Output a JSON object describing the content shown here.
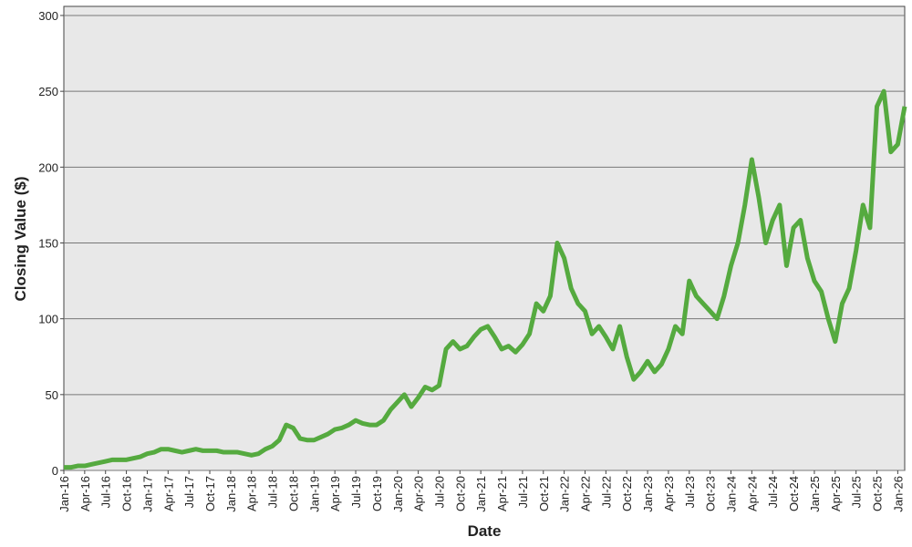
{
  "chart_data": {
    "type": "line",
    "x_label": "Date",
    "y_label": "Closing Value ($)",
    "categories": [
      "Jan-16",
      null,
      null,
      "Apr-16",
      null,
      null,
      "Jul-16",
      null,
      null,
      "Oct-16",
      null,
      null,
      "Jan-17",
      null,
      null,
      "Apr-17",
      null,
      null,
      "Jul-17",
      null,
      null,
      "Oct-17",
      null,
      null,
      "Jan-18",
      null,
      null,
      "Apr-18",
      null,
      null,
      "Jul-18",
      null,
      null,
      "Oct-18",
      null,
      null,
      "Jan-19",
      null,
      null,
      "Apr-19",
      null,
      null,
      "Jul-19",
      null,
      null,
      "Oct-19",
      null,
      null,
      "Jan-20",
      null,
      null,
      "Apr-20",
      null,
      null,
      "Jul-20",
      null,
      null,
      "Oct-20",
      null,
      null,
      "Jan-21",
      null,
      null,
      "Apr-21",
      null,
      null,
      "Jul-21",
      null,
      null,
      "Oct-21",
      null,
      null,
      "Jan-22",
      null,
      null,
      "Apr-22",
      null,
      null,
      "Jul-22",
      null,
      null,
      "Oct-22",
      null,
      null,
      "Jan-23",
      null,
      null,
      "Apr-23",
      null,
      null,
      "Jul-23",
      null,
      null,
      "Oct-23",
      null,
      null,
      "Jan-24",
      null,
      null,
      "Apr-24",
      null,
      null,
      "Jul-24",
      null,
      null,
      "Oct-24",
      null,
      null,
      "Jan-25",
      null,
      null,
      "Apr-25",
      null,
      null,
      "Jul-25",
      null,
      null,
      "Oct-25",
      null,
      null,
      "Jan-26",
      null
    ],
    "series": [
      {
        "color": "#55aa3f",
        "values": [
          2,
          2,
          3,
          3,
          4,
          5,
          6,
          7,
          7,
          7,
          8,
          9,
          11,
          12,
          14,
          14,
          13,
          12,
          13,
          14,
          13,
          13,
          13,
          12,
          12,
          12,
          11,
          10,
          11,
          14,
          16,
          20,
          30,
          28,
          21,
          20,
          20,
          22,
          24,
          27,
          28,
          30,
          33,
          31,
          30,
          30,
          33,
          40,
          45,
          50,
          42,
          48,
          55,
          53,
          56,
          80,
          85,
          80,
          82,
          88,
          93,
          95,
          88,
          80,
          82,
          78,
          83,
          90,
          110,
          105,
          115,
          150,
          140,
          120,
          110,
          105,
          90,
          95,
          88,
          80,
          95,
          75,
          60,
          65,
          72,
          65,
          70,
          80,
          95,
          90,
          125,
          115,
          110,
          105,
          100,
          115,
          135,
          150,
          175,
          205,
          180,
          150,
          165,
          175,
          135,
          160,
          165,
          140,
          125,
          118,
          100,
          85,
          110,
          120,
          145,
          175,
          160,
          240,
          250,
          210,
          215,
          240
        ]
      }
    ],
    "ylim": [
      0,
      306
    ],
    "yticks": [
      0,
      50,
      100,
      150,
      200,
      250,
      300
    ],
    "grid": true
  }
}
